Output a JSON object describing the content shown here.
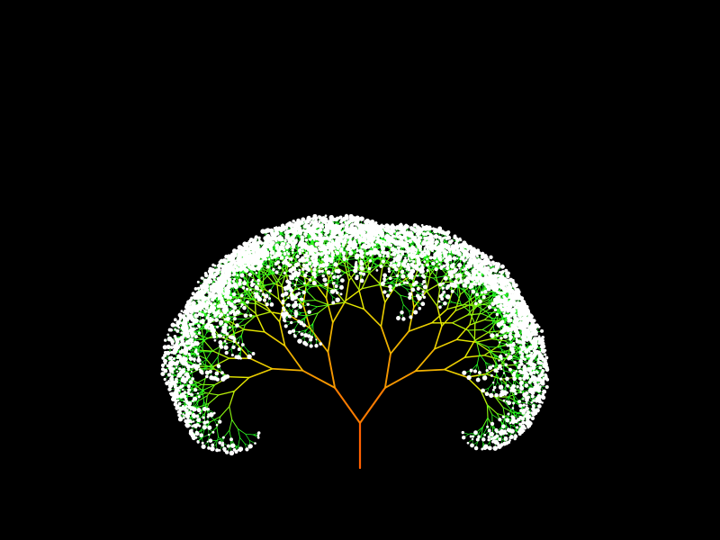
{
  "scene": {
    "subject": "fractal-tree",
    "background_color": "#000000",
    "trunk_color": "#ff6000",
    "mid_branch_color": "#e8e800",
    "leaf_branch_color": "#22ff22",
    "blossom_color": "#ffffff"
  }
}
